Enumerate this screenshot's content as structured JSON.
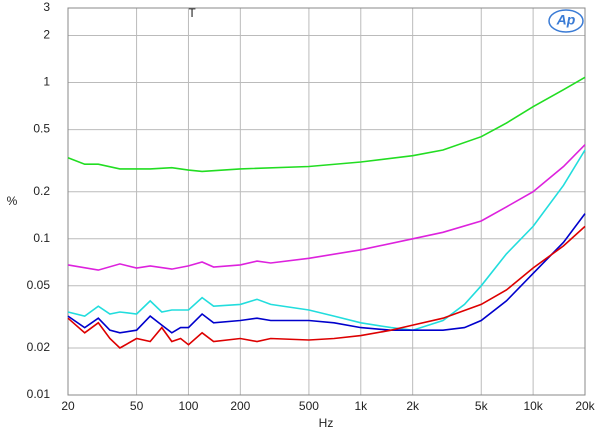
{
  "chart_data": {
    "type": "line",
    "title": "T",
    "xlabel": "Hz",
    "ylabel": "%",
    "logo": "Ap",
    "xscale": "log",
    "yscale": "log",
    "grid": true,
    "xlim": [
      20,
      20000
    ],
    "ylim": [
      0.01,
      3
    ],
    "xticks": [
      20,
      50,
      100,
      200,
      500,
      {
        "value": 1000,
        "label": "1k"
      },
      {
        "value": 2000,
        "label": "2k"
      },
      {
        "value": 5000,
        "label": "5k"
      },
      {
        "value": 10000,
        "label": "10k"
      },
      {
        "value": 20000,
        "label": "20k"
      }
    ],
    "yticks": [
      0.01,
      0.02,
      0.05,
      0.1,
      0.2,
      0.5,
      1,
      2,
      3
    ],
    "series": [
      {
        "color": "#22dd22",
        "x": [
          20,
          25,
          30,
          40,
          60,
          80,
          100,
          120,
          200,
          500,
          1000,
          2000,
          3000,
          5000,
          7000,
          10000,
          15000,
          20000
        ],
        "values": [
          0.33,
          0.3,
          0.3,
          0.28,
          0.28,
          0.285,
          0.275,
          0.27,
          0.28,
          0.29,
          0.31,
          0.34,
          0.37,
          0.45,
          0.55,
          0.7,
          0.9,
          1.08
        ]
      },
      {
        "color": "#dd22dd",
        "x": [
          20,
          30,
          40,
          50,
          60,
          80,
          100,
          120,
          140,
          200,
          250,
          300,
          500,
          1000,
          2000,
          3000,
          5000,
          7000,
          10000,
          15000,
          20000
        ],
        "values": [
          0.068,
          0.063,
          0.069,
          0.065,
          0.067,
          0.064,
          0.067,
          0.071,
          0.066,
          0.068,
          0.072,
          0.07,
          0.075,
          0.085,
          0.1,
          0.11,
          0.13,
          0.16,
          0.2,
          0.29,
          0.4
        ]
      },
      {
        "color": "#22dddd",
        "x": [
          20,
          25,
          30,
          35,
          40,
          50,
          60,
          70,
          80,
          100,
          120,
          140,
          200,
          250,
          300,
          500,
          700,
          1000,
          1500,
          2000,
          3000,
          4000,
          5000,
          7000,
          10000,
          15000,
          20000
        ],
        "values": [
          0.034,
          0.032,
          0.037,
          0.033,
          0.034,
          0.033,
          0.04,
          0.034,
          0.035,
          0.035,
          0.042,
          0.037,
          0.038,
          0.041,
          0.038,
          0.035,
          0.032,
          0.029,
          0.027,
          0.026,
          0.03,
          0.038,
          0.05,
          0.08,
          0.12,
          0.22,
          0.37
        ]
      },
      {
        "color": "#0000cc",
        "x": [
          20,
          25,
          30,
          35,
          40,
          50,
          60,
          70,
          80,
          90,
          100,
          120,
          140,
          200,
          250,
          300,
          500,
          700,
          1000,
          1500,
          2000,
          3000,
          4000,
          5000,
          7000,
          10000,
          15000,
          20000
        ],
        "values": [
          0.032,
          0.027,
          0.031,
          0.026,
          0.025,
          0.026,
          0.032,
          0.028,
          0.025,
          0.027,
          0.027,
          0.033,
          0.029,
          0.03,
          0.031,
          0.03,
          0.03,
          0.029,
          0.027,
          0.026,
          0.026,
          0.026,
          0.027,
          0.03,
          0.04,
          0.06,
          0.095,
          0.145
        ]
      },
      {
        "color": "#dd0000",
        "x": [
          20,
          25,
          30,
          35,
          40,
          50,
          60,
          70,
          80,
          90,
          100,
          120,
          140,
          200,
          250,
          300,
          500,
          700,
          1000,
          1500,
          2000,
          3000,
          5000,
          7000,
          10000,
          15000,
          20000
        ],
        "values": [
          0.031,
          0.025,
          0.029,
          0.023,
          0.02,
          0.023,
          0.022,
          0.027,
          0.022,
          0.023,
          0.021,
          0.025,
          0.022,
          0.023,
          0.022,
          0.023,
          0.0225,
          0.023,
          0.024,
          0.026,
          0.028,
          0.031,
          0.038,
          0.047,
          0.065,
          0.09,
          0.12
        ]
      }
    ]
  }
}
